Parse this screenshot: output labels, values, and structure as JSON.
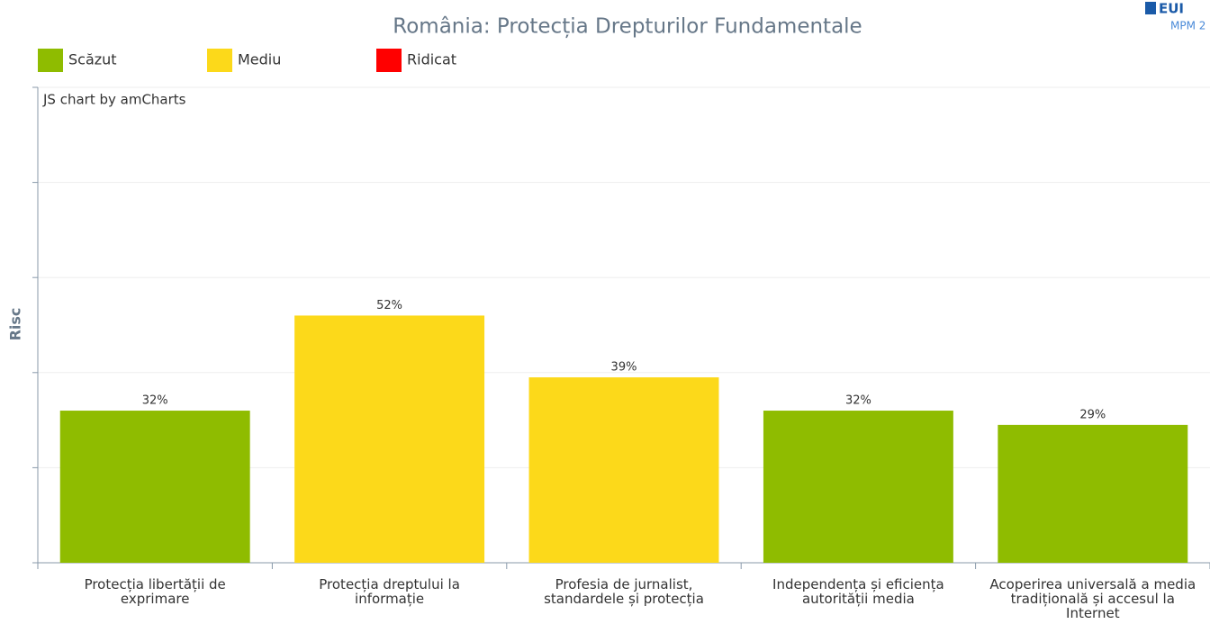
{
  "chart_data": {
    "type": "bar",
    "title": "România: Protecția Drepturilor Fundamentale",
    "y_label": "Risc",
    "credit": "JS chart by amCharts",
    "logo": [
      "EUI",
      "MPM 2"
    ],
    "legend": [
      {
        "name": "Scăzut",
        "color": "#8fbc00"
      },
      {
        "name": "Mediu",
        "color": "#fcd91a"
      },
      {
        "name": "Ridicat",
        "color": "#ff0000"
      }
    ],
    "categories": [
      "Protecția libertății de exprimare",
      "Protecția dreptului la informație",
      "Profesia de jurnalist, standardele și protecția",
      "Independența și eficiența autorității media",
      "Acoperirea universală a media tradițională și accesul la Internet"
    ],
    "values": [
      32,
      52,
      39,
      32,
      29
    ],
    "value_labels": [
      "32%",
      "52%",
      "39%",
      "32%",
      "29%"
    ],
    "colors": [
      "#8fbc00",
      "#fcd91a",
      "#fcd91a",
      "#8fbc00",
      "#8fbc00"
    ],
    "ylim": [
      0,
      100
    ],
    "yticks": [
      0,
      20,
      40,
      60,
      80,
      100
    ],
    "grid": true
  }
}
